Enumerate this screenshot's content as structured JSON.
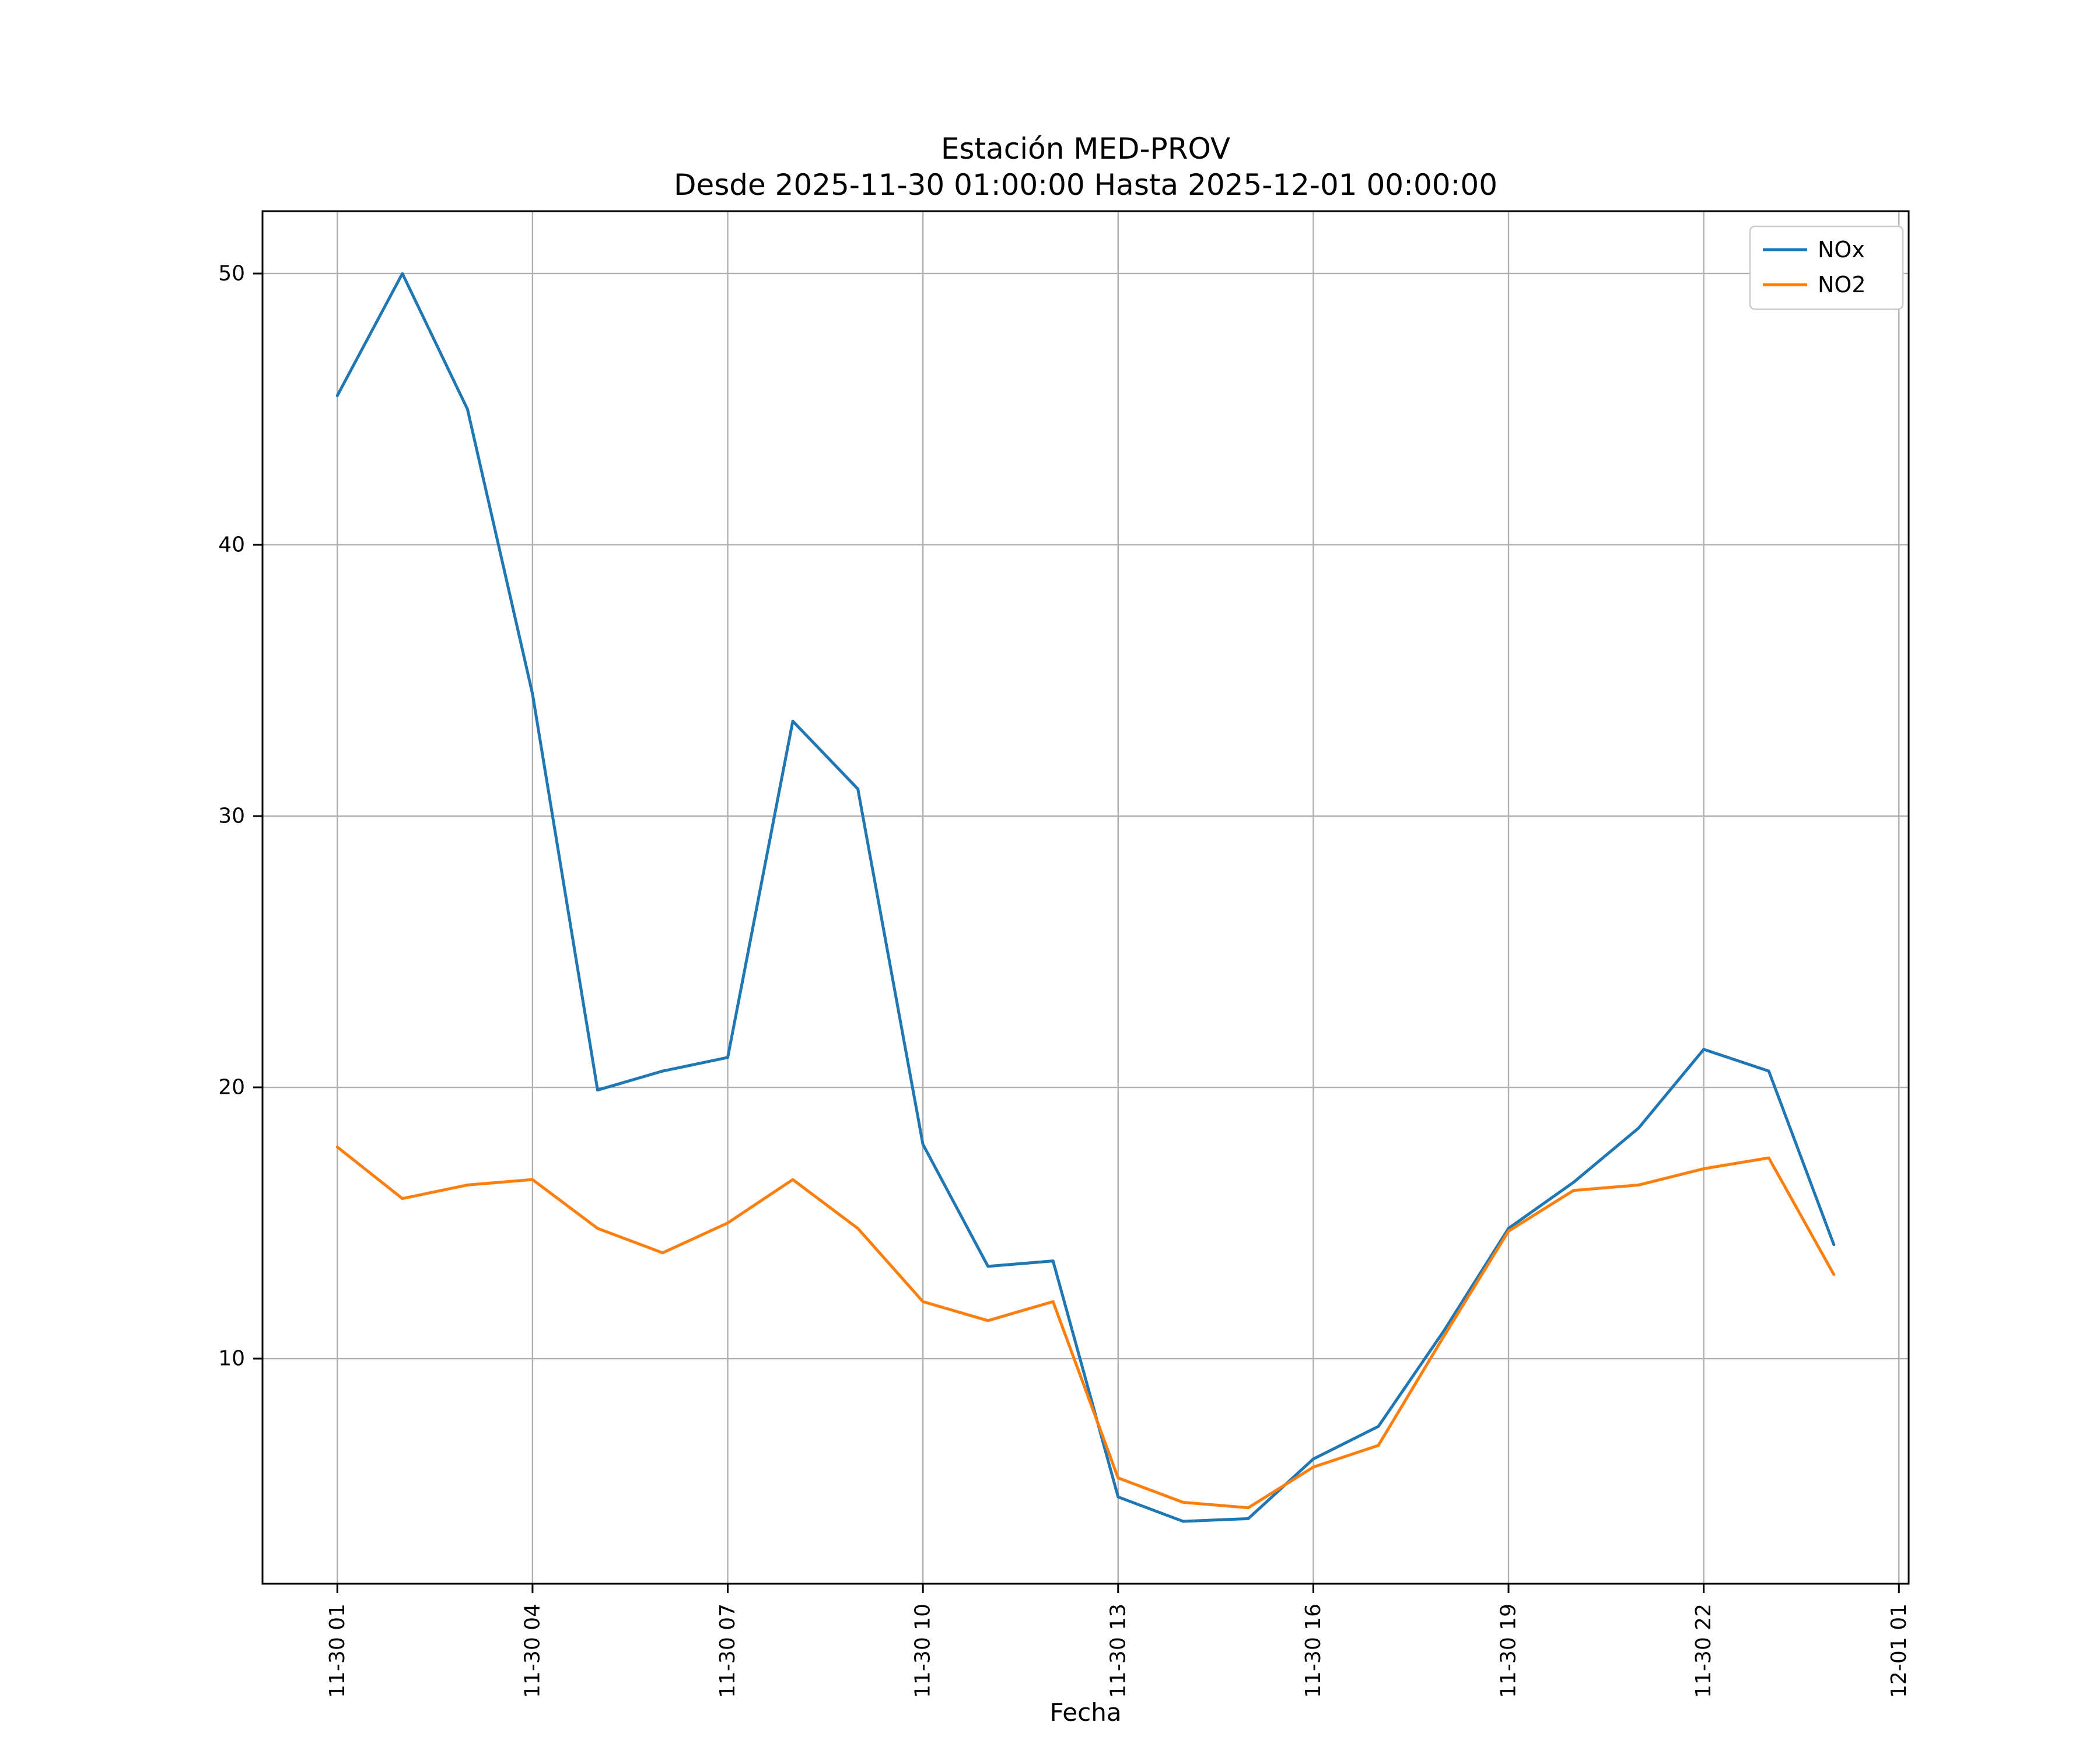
{
  "figure": {
    "title_line1": "Estación MED-PROV",
    "title_line2": "Desde 2025-11-30 01:00:00 Hasta 2025-12-01 00:00:00",
    "xlabel": "Fecha"
  },
  "colors": {
    "nox_line": "#1f77b4",
    "no2_line": "#ff7f0e",
    "grid": "#b0b0b0",
    "axes_edge": "#000000",
    "legend_border": "#cccccc",
    "background": "#ffffff"
  },
  "chart_data": {
    "type": "line",
    "title": "Estación MED-PROV\nDesde 2025-11-30 01:00:00 Hasta 2025-12-01 00:00:00",
    "xlabel": "Fecha",
    "ylabel": "",
    "grid": true,
    "legend_position": "upper right",
    "x_hours": [
      1,
      2,
      3,
      4,
      5,
      6,
      7,
      8,
      9,
      10,
      11,
      12,
      13,
      14,
      15,
      16,
      17,
      18,
      19,
      20,
      21,
      22,
      23,
      24
    ],
    "x_timestamps": [
      "11-30 01:00",
      "11-30 02:00",
      "11-30 03:00",
      "11-30 04:00",
      "11-30 05:00",
      "11-30 06:00",
      "11-30 07:00",
      "11-30 08:00",
      "11-30 09:00",
      "11-30 10:00",
      "11-30 11:00",
      "11-30 12:00",
      "11-30 13:00",
      "11-30 14:00",
      "11-30 15:00",
      "11-30 16:00",
      "11-30 17:00",
      "11-30 18:00",
      "11-30 19:00",
      "11-30 20:00",
      "11-30 21:00",
      "11-30 22:00",
      "11-30 23:00",
      "12-01 00:00"
    ],
    "x_tick_hours": [
      1,
      4,
      7,
      10,
      13,
      16,
      19,
      22,
      25
    ],
    "x_tick_labels": [
      "11-30 01",
      "11-30 04",
      "11-30 07",
      "11-30 10",
      "11-30 13",
      "11-30 16",
      "11-30 19",
      "11-30 22",
      "12-01 01"
    ],
    "y_ticks": [
      10,
      20,
      30,
      40,
      50
    ],
    "xlim": [
      -0.15,
      25.15
    ],
    "ylim": [
      1.7,
      52.3
    ],
    "series": [
      {
        "name": "NOx",
        "color": "#1f77b4",
        "values": [
          45.5,
          50.0,
          45.0,
          34.5,
          19.9,
          20.6,
          21.1,
          33.5,
          31.0,
          17.9,
          13.4,
          13.6,
          4.9,
          4.0,
          4.1,
          6.3,
          7.5,
          11.0,
          14.8,
          16.5,
          18.5,
          21.4,
          20.6,
          14.2
        ]
      },
      {
        "name": "NO2",
        "color": "#ff7f0e",
        "values": [
          17.8,
          15.9,
          16.4,
          16.6,
          14.8,
          13.9,
          15.0,
          16.6,
          14.8,
          12.1,
          11.4,
          12.1,
          5.6,
          4.7,
          4.5,
          6.0,
          6.8,
          10.8,
          14.7,
          16.2,
          16.4,
          17.0,
          17.4,
          13.1
        ]
      }
    ]
  }
}
